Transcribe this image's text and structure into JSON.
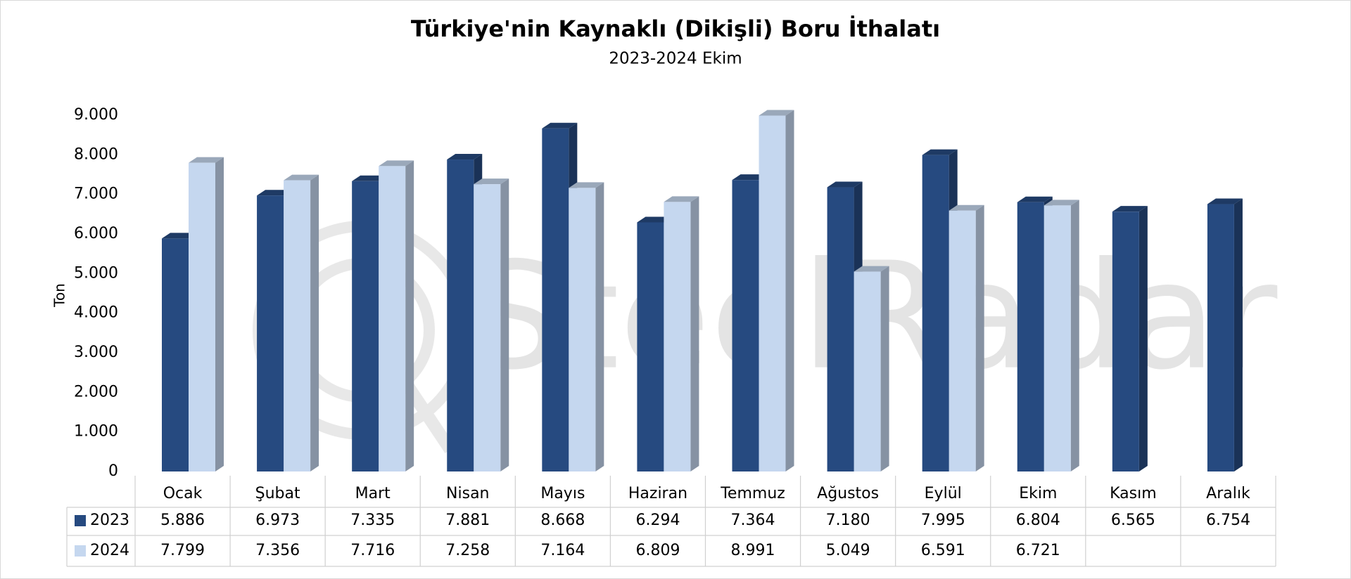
{
  "chart_data": {
    "type": "bar3d",
    "title": "Türkiye'nin Kaynaklı (Dikişli) Boru İthalatı",
    "subtitle": "2023-2024 Ekim",
    "y_label": "Ton",
    "watermark": "SteelRadar",
    "categories": [
      "Ocak",
      "Şubat",
      "Mart",
      "Nisan",
      "Mayıs",
      "Haziran",
      "Temmuz",
      "Ağustos",
      "Eylül",
      "Ekim",
      "Kasım",
      "Aralık"
    ],
    "series": [
      {
        "name": "2023",
        "color": "#264a80",
        "values": [
          5886,
          6973,
          7335,
          7881,
          8668,
          6294,
          7364,
          7180,
          7995,
          6804,
          6565,
          6754
        ],
        "value_labels": [
          "5.886",
          "6.973",
          "7.335",
          "7.881",
          "8.668",
          "6.294",
          "7.364",
          "7.180",
          "7.995",
          "6.804",
          "6.565",
          "6.754"
        ]
      },
      {
        "name": "2024",
        "color": "#c5d7ef",
        "values": [
          7799,
          7356,
          7716,
          7258,
          7164,
          6809,
          8991,
          5049,
          6591,
          6721,
          null,
          null
        ],
        "value_labels": [
          "7.799",
          "7.356",
          "7.716",
          "7.258",
          "7.164",
          "6.809",
          "8.991",
          "5.049",
          "6.591",
          "6.721",
          null,
          null
        ]
      }
    ],
    "ylim": [
      0,
      9000
    ],
    "yticks": [
      0,
      {
        "value": 1000,
        "label": "1.000"
      },
      {
        "value": 2000,
        "label": "2.000"
      },
      {
        "value": 3000,
        "label": "3.000"
      },
      {
        "value": 4000,
        "label": "4.000"
      },
      {
        "value": 5000,
        "label": "5.000"
      },
      {
        "value": 6000,
        "label": "6.000"
      },
      {
        "value": 7000,
        "label": "7.000"
      },
      {
        "value": 8000,
        "label": "8.000"
      },
      {
        "value": 9000,
        "label": "9.000"
      }
    ],
    "grid": false
  }
}
